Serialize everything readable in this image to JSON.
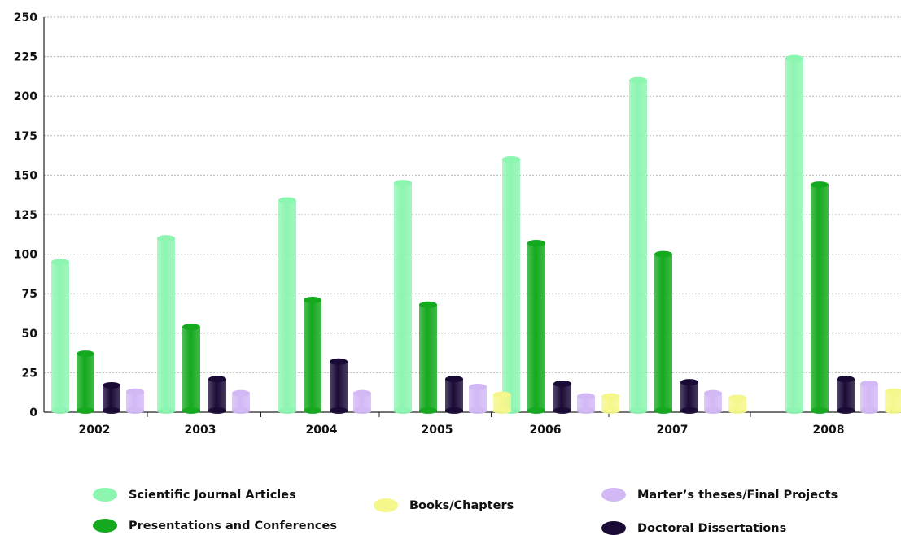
{
  "chart_data": {
    "type": "bar",
    "categories": [
      "2002",
      "2003",
      "2004",
      "2005",
      "2006",
      "2007",
      "2008"
    ],
    "series": [
      {
        "name": "Scientific Journal Articles",
        "color": "#8cf5b0",
        "values": [
          95,
          110,
          134,
          145,
          160,
          210,
          224
        ]
      },
      {
        "name": "Presentations and Conferences",
        "color": "#14a91e",
        "values": [
          37,
          54,
          71,
          68,
          107,
          100,
          144
        ]
      },
      {
        "name": "Doctoral Dissertations",
        "color": "#1a0a36",
        "values": [
          17,
          21,
          32,
          21,
          18,
          19,
          21
        ]
      },
      {
        "name": "Marter’s theses/Final Projects",
        "color": "#d2b8f5",
        "values": [
          13,
          12,
          12,
          16,
          10,
          12,
          18
        ]
      },
      {
        "name": "Books/Chapters",
        "color": "#f5f78c",
        "values": [
          null,
          null,
          null,
          11,
          10,
          9,
          13
        ]
      }
    ],
    "yticks": [
      "0",
      "25",
      "50",
      "75",
      "100",
      "125",
      "150",
      "175",
      "200",
      "225",
      "250"
    ],
    "ylim": [
      0,
      250
    ],
    "grid": true,
    "legend_position": "bottom",
    "title": "",
    "xlabel": "",
    "ylabel": ""
  }
}
